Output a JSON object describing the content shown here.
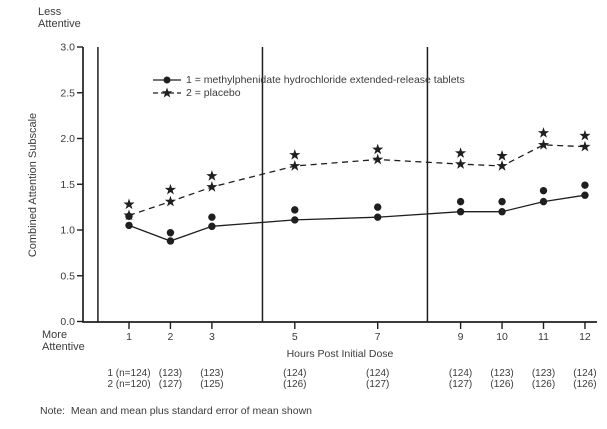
{
  "chart_data": {
    "type": "line",
    "title": "",
    "xlabel": "Hours Post Initial Dose",
    "ylabel": "Combined Attention Subscale",
    "y_axis_top_lines": [
      "Less",
      "Attentive"
    ],
    "y_axis_bottom_lines": [
      "More",
      "Attentive"
    ],
    "note": "Note:  Mean and mean plus standard error of mean shown",
    "x_hours": [
      1,
      2,
      3,
      5,
      7,
      9,
      10,
      11,
      12
    ],
    "x_tick_labels": [
      "1",
      "2",
      "3",
      "5",
      "7",
      "9",
      "10",
      "11",
      "12"
    ],
    "y_tick_labels": [
      "0.0",
      "0.5",
      "1.0",
      "1.5",
      "2.0",
      "2.5",
      "3.0"
    ],
    "ylim": [
      0,
      3.0
    ],
    "grid": false,
    "legend_position": "upper-left-inside",
    "session_divider_hours": [
      0.25,
      4.22,
      8.2
    ],
    "marker_note": "each timepoint shows mean and mean plus standard error markers",
    "series": [
      {
        "name": "1 = methylphenidate hydrochloride extended-release tablets",
        "marker": "circle",
        "line_style": "solid",
        "mean": [
          1.05,
          0.88,
          1.04,
          1.11,
          1.14,
          1.2,
          1.2,
          1.31,
          1.38
        ],
        "mean_plus_se": [
          1.15,
          0.97,
          1.14,
          1.22,
          1.25,
          1.31,
          1.31,
          1.43,
          1.49
        ],
        "n_labels": [
          "1 (n=124)",
          "(123)",
          "(123)",
          "(124)",
          "(124)",
          "(124)",
          "(123)",
          "(123)",
          "(124)"
        ]
      },
      {
        "name": "2 = placebo",
        "marker": "star",
        "line_style": "dashed",
        "mean": [
          1.16,
          1.31,
          1.47,
          1.7,
          1.77,
          1.72,
          1.7,
          1.93,
          1.91
        ],
        "mean_plus_se": [
          1.28,
          1.44,
          1.59,
          1.82,
          1.88,
          1.84,
          1.81,
          2.06,
          2.03
        ],
        "n_labels": [
          "2 (n=120)",
          "(127)",
          "(125)",
          "(126)",
          "(127)",
          "(127)",
          "(126)",
          "(126)",
          "(126)"
        ]
      }
    ],
    "colors": {
      "line": "#1f1f1f",
      "text": "#3b3b3b"
    }
  }
}
